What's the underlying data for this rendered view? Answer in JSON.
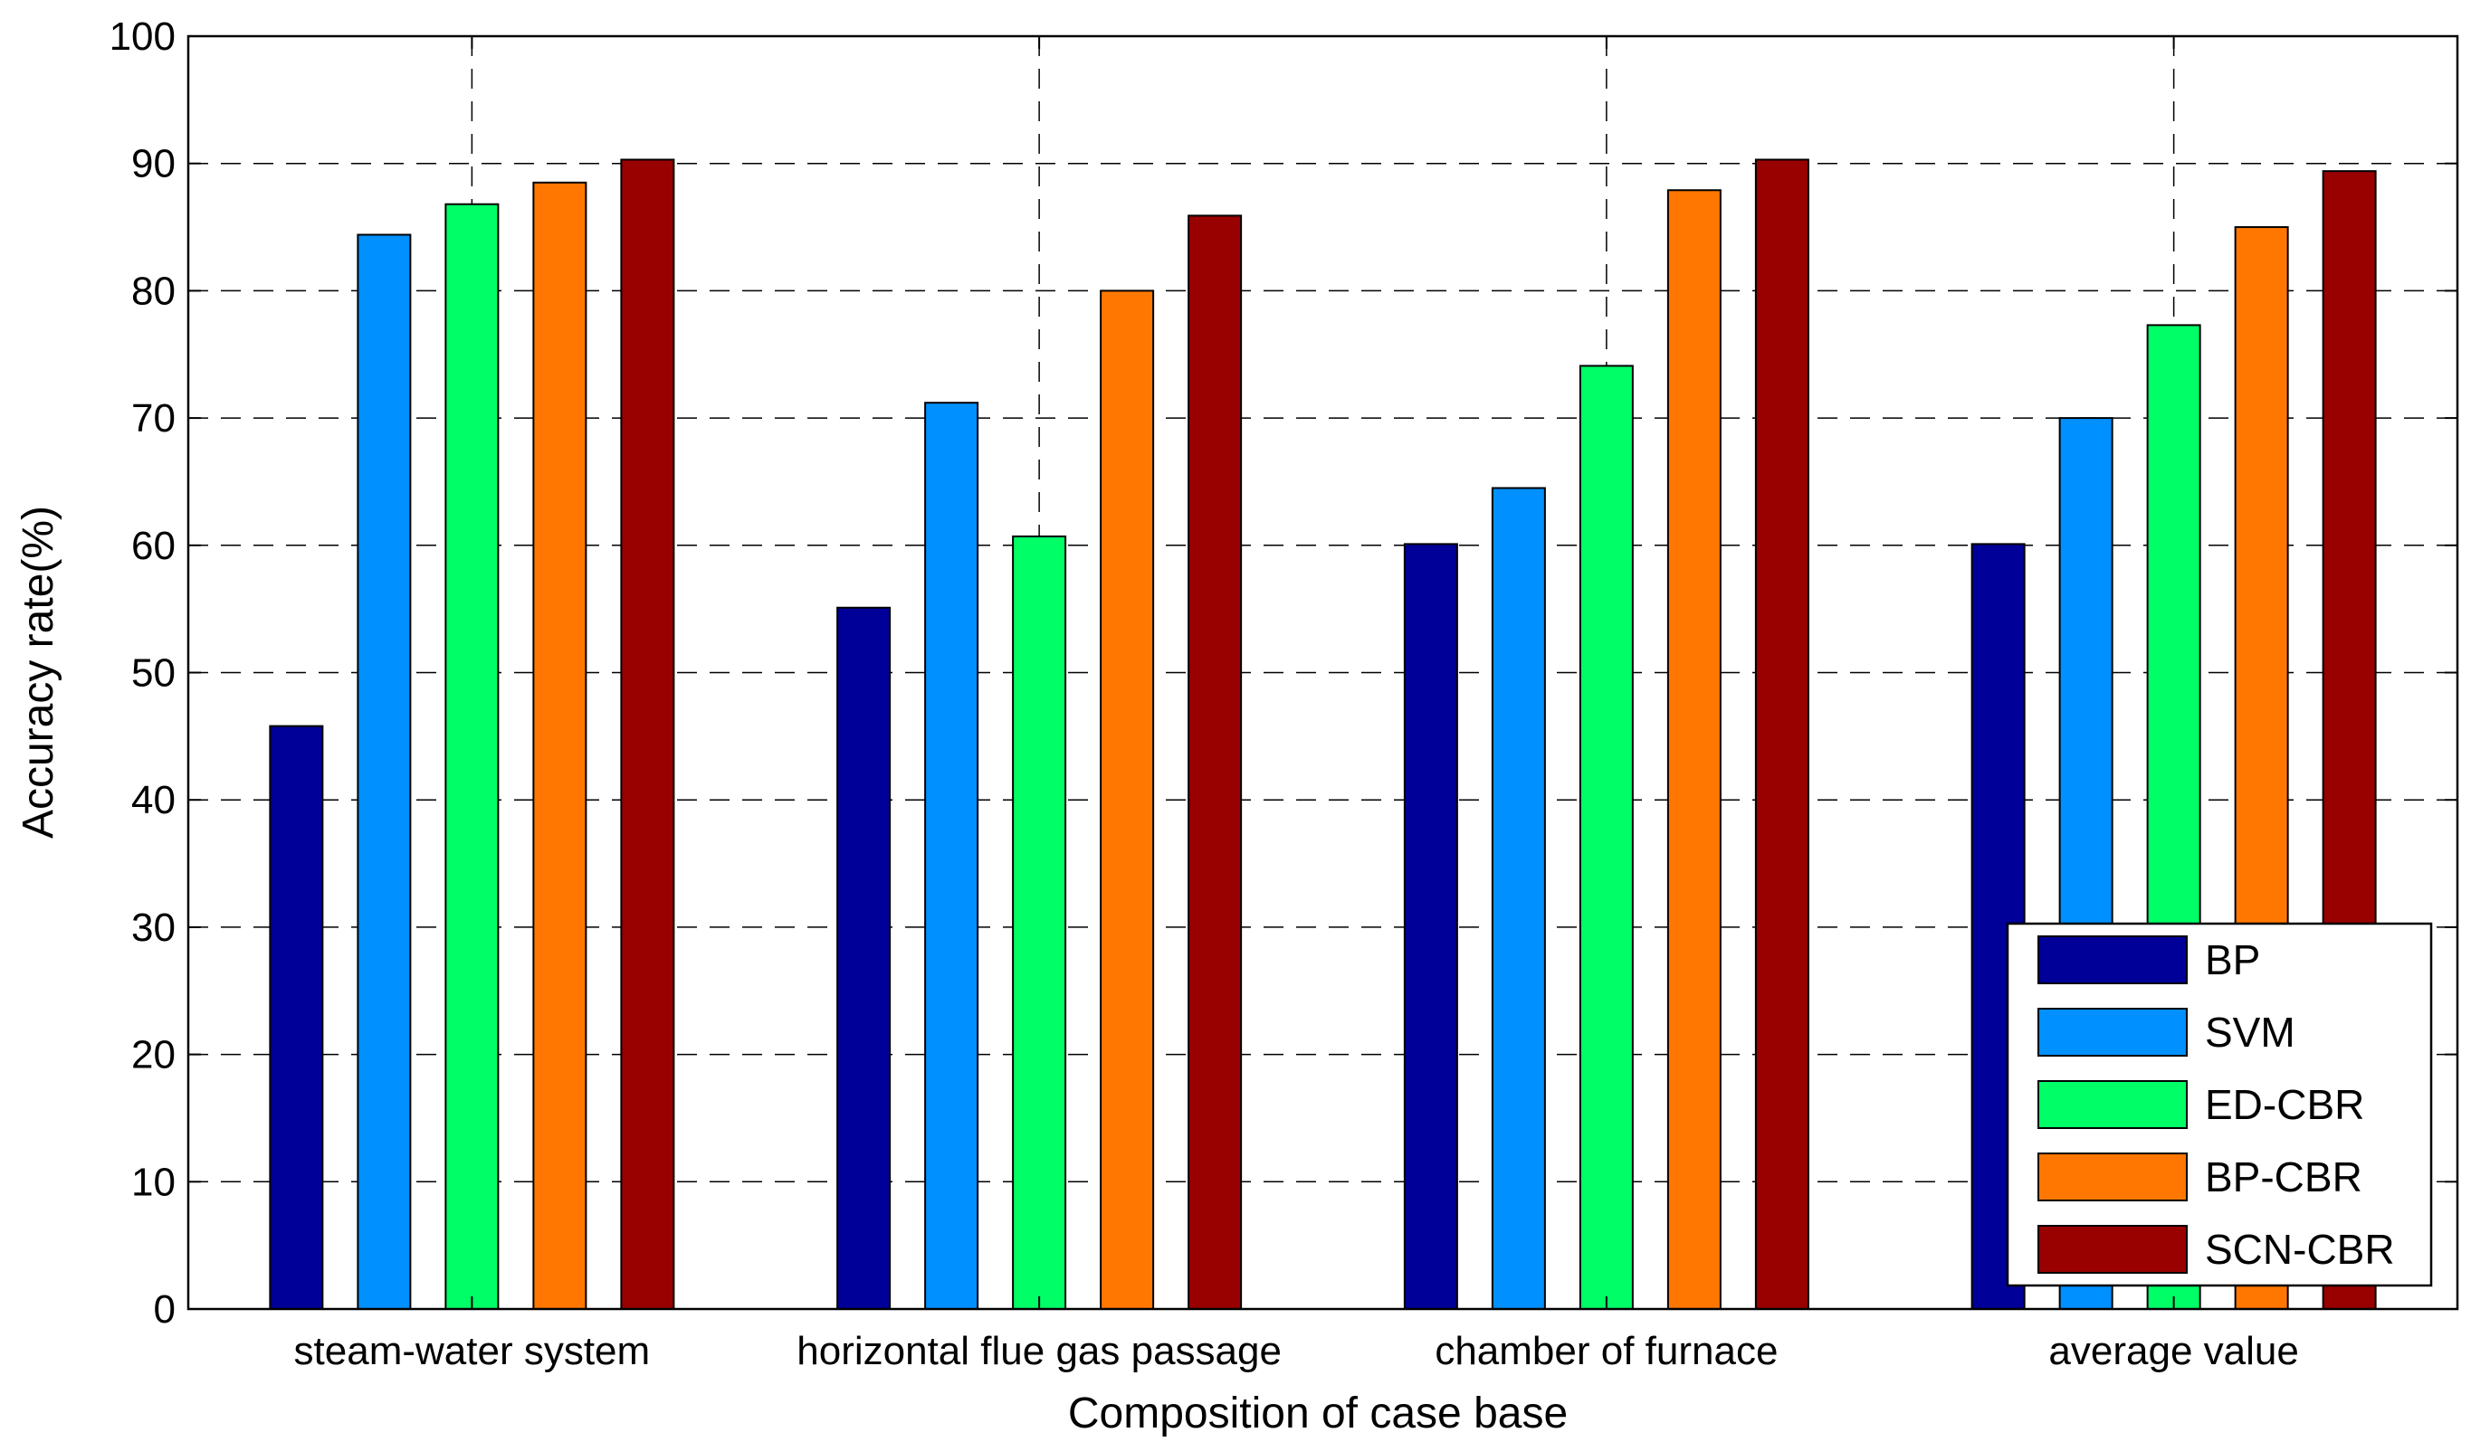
{
  "chart_data": {
    "type": "bar",
    "title": "",
    "xlabel": "Composition of case base",
    "ylabel": "Accuracy rate(%)",
    "ylim": [
      0,
      100
    ],
    "yticks": [
      "0",
      "10",
      "20",
      "30",
      "40",
      "50",
      "60",
      "70",
      "80",
      "90",
      "100"
    ],
    "grid": true,
    "legend_position": "bottom-right",
    "categories": [
      "steam-water system",
      "horizontal flue gas passage",
      "chamber of furnace",
      "average value"
    ],
    "series": [
      {
        "name": "BP",
        "color": "#000099",
        "values": [
          45.8,
          55.1,
          60.1,
          60.1
        ]
      },
      {
        "name": "SVM",
        "color": "#0090FF",
        "values": [
          84.4,
          71.2,
          64.5,
          70.0
        ]
      },
      {
        "name": "ED-CBR",
        "color": "#00FF66",
        "values": [
          86.8,
          60.7,
          74.1,
          77.3
        ]
      },
      {
        "name": "BP-CBR",
        "color": "#FF7700",
        "values": [
          88.5,
          80.0,
          87.9,
          85.0
        ]
      },
      {
        "name": "SCN-CBR",
        "color": "#990000",
        "values": [
          90.3,
          85.9,
          90.3,
          89.4
        ]
      }
    ]
  }
}
